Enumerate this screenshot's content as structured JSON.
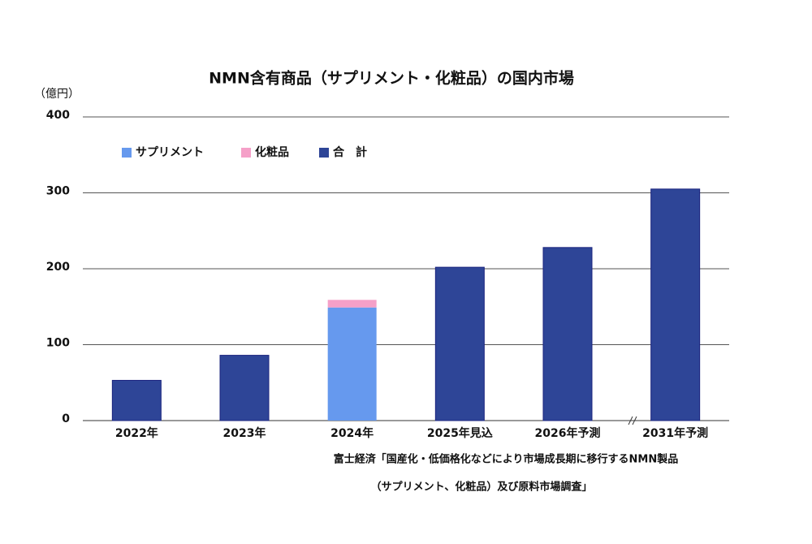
{
  "chart_data": {
    "type": "stacked-bar",
    "title": "NMN含有商品（サプリメント・化粧品）の国内市場",
    "y_unit": "（億円）",
    "categories": [
      "2022年",
      "2023年",
      "2024年",
      "2025年見込",
      "2026年予測",
      "2031年予測"
    ],
    "series": [
      {
        "name": "サプリメント",
        "color": "#6699ee",
        "values": [
          null,
          null,
          149,
          null,
          null,
          null
        ]
      },
      {
        "name": "化粧品",
        "color": "#f5a0c8",
        "values": [
          null,
          null,
          10,
          null,
          null,
          null
        ]
      },
      {
        "name": "合　計",
        "color": "#2e4597",
        "values": [
          53,
          86,
          null,
          202,
          228,
          305
        ]
      }
    ],
    "ylim": [
      0,
      400
    ],
    "yticks": [
      0,
      100,
      200,
      300,
      400
    ],
    "grid": true,
    "legend": "top-left",
    "source": [
      "富士経済「国産化・低価格化などにより市場成長期に移行するNMN製品",
      "（サプリメント、化粧品）及び原料市場調査」"
    ]
  }
}
